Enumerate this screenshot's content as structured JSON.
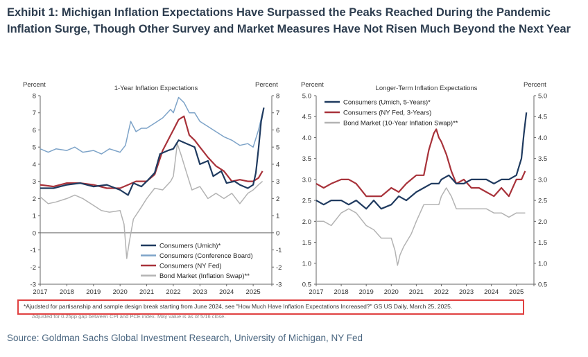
{
  "title": "Exhibit 1: Michigan Inflation Expectations Have Surpassed the Peaks Reached During the Pandemic Inflation Surge, Though Other Survey and Market Measures Have Not Risen Much Beyond the Next Year",
  "footnote_1": "*Ajudsted for partisanship and sample design break starting from June 2024, see \"How Much Have Inflation Expectations Increased?\" GS US Daily, March 25, 2025.",
  "footnote_2": "Adjusted for 0.25pp gap between CPI and PCE index. May value is as of 5/16 close.",
  "source": "Source: Goldman Sachs Global Investment Research, University of Michigan, NY Fed",
  "colors": {
    "umich": "#1f3a5f",
    "conf_board": "#7da3c8",
    "nyfed": "#a8323a",
    "bond": "#b3b3b3",
    "highlight_box": "#e04040"
  },
  "chart_data": [
    {
      "type": "line",
      "title": "1-Year Inflation Expectations",
      "ylabel_left": "Percent",
      "ylabel_right": "Percent",
      "xlim": [
        2017,
        2025.7
      ],
      "ylim": [
        -3,
        8
      ],
      "yticks": [
        -3,
        -2,
        -1,
        0,
        1,
        2,
        3,
        4,
        5,
        6,
        7,
        8
      ],
      "xticks": [
        "2017",
        "2018",
        "2019",
        "2020",
        "2021",
        "2022",
        "2023",
        "2024",
        "2025"
      ],
      "legend_position": "bottom-right",
      "series": [
        {
          "name": "Consumers (Umich)*",
          "color_key": "umich",
          "width": 2.2,
          "x": [
            2017.0,
            2017.5,
            2018.0,
            2018.5,
            2019.0,
            2019.5,
            2020.0,
            2020.3,
            2020.5,
            2020.8,
            2021.0,
            2021.3,
            2021.5,
            2021.8,
            2022.0,
            2022.2,
            2022.5,
            2022.8,
            2023.0,
            2023.3,
            2023.5,
            2023.8,
            2024.0,
            2024.3,
            2024.5,
            2024.8,
            2025.0,
            2025.1,
            2025.2,
            2025.3,
            2025.4
          ],
          "y": [
            2.6,
            2.6,
            2.8,
            2.9,
            2.7,
            2.8,
            2.5,
            2.2,
            2.9,
            2.7,
            3.0,
            3.5,
            4.6,
            4.8,
            4.9,
            5.4,
            5.2,
            5.0,
            4.0,
            4.2,
            3.3,
            3.6,
            2.9,
            3.0,
            2.8,
            2.6,
            2.8,
            3.5,
            4.9,
            6.5,
            7.3
          ]
        },
        {
          "name": "Consumers (Conference Board)",
          "color_key": "conf_board",
          "width": 1.5,
          "x": [
            2017.0,
            2017.3,
            2017.6,
            2018.0,
            2018.3,
            2018.6,
            2019.0,
            2019.3,
            2019.6,
            2020.0,
            2020.2,
            2020.4,
            2020.6,
            2020.8,
            2021.0,
            2021.3,
            2021.6,
            2021.9,
            2022.0,
            2022.2,
            2022.4,
            2022.6,
            2022.8,
            2023.0,
            2023.3,
            2023.6,
            2023.9,
            2024.2,
            2024.5,
            2024.8,
            2025.0,
            2025.2,
            2025.35
          ],
          "y": [
            4.9,
            4.7,
            4.9,
            4.8,
            5.0,
            4.7,
            4.8,
            4.6,
            4.9,
            4.7,
            5.1,
            6.5,
            5.9,
            6.1,
            6.1,
            6.4,
            6.7,
            7.2,
            7.0,
            7.9,
            7.6,
            7.0,
            7.0,
            6.5,
            6.2,
            5.9,
            5.6,
            5.4,
            5.1,
            5.2,
            5.0,
            6.0,
            7.0
          ]
        },
        {
          "name": "Consumers (NY Fed)",
          "color_key": "nyfed",
          "width": 2.2,
          "x": [
            2017.0,
            2017.5,
            2018.0,
            2018.5,
            2019.0,
            2019.5,
            2020.0,
            2020.3,
            2020.6,
            2021.0,
            2021.3,
            2021.6,
            2021.9,
            2022.0,
            2022.2,
            2022.4,
            2022.6,
            2022.8,
            2023.0,
            2023.3,
            2023.6,
            2023.9,
            2024.2,
            2024.5,
            2024.8,
            2025.0,
            2025.2,
            2025.35
          ],
          "y": [
            2.8,
            2.7,
            2.9,
            2.9,
            2.8,
            2.6,
            2.6,
            2.8,
            3.0,
            3.0,
            3.4,
            4.8,
            5.7,
            6.0,
            6.6,
            6.8,
            5.7,
            5.4,
            5.0,
            4.4,
            3.9,
            3.6,
            3.0,
            3.1,
            3.0,
            3.0,
            3.2,
            3.6
          ]
        },
        {
          "name": "Bond Market (Inflation Swap)**",
          "color_key": "bond",
          "width": 1.5,
          "x": [
            2017.0,
            2017.3,
            2017.6,
            2018.0,
            2018.3,
            2018.6,
            2019.0,
            2019.3,
            2019.6,
            2020.0,
            2020.15,
            2020.25,
            2020.35,
            2020.5,
            2020.8,
            2021.0,
            2021.3,
            2021.6,
            2021.9,
            2022.0,
            2022.15,
            2022.3,
            2022.5,
            2022.7,
            2023.0,
            2023.3,
            2023.6,
            2023.9,
            2024.2,
            2024.5,
            2024.8,
            2025.0,
            2025.2,
            2025.35
          ],
          "y": [
            2.1,
            1.7,
            1.8,
            2.0,
            2.2,
            2.0,
            1.6,
            1.3,
            1.2,
            1.3,
            0.5,
            -1.5,
            -0.5,
            0.8,
            1.5,
            2.0,
            2.6,
            2.5,
            3.0,
            3.3,
            5.2,
            4.5,
            3.5,
            2.5,
            2.7,
            2.0,
            2.3,
            2.0,
            2.3,
            1.7,
            2.3,
            2.5,
            2.8,
            3.0
          ]
        }
      ]
    },
    {
      "type": "line",
      "title": "Longer-Term Inflation Expectations",
      "ylabel_left": "Percent",
      "ylabel_right": "Percent",
      "xlim": [
        2017,
        2025.7
      ],
      "ylim": [
        0.5,
        5.0
      ],
      "yticks": [
        0.5,
        1.0,
        1.5,
        2.0,
        2.5,
        3.0,
        3.5,
        4.0,
        4.5,
        5.0
      ],
      "xticks": [
        "2017",
        "2018",
        "2019",
        "2020",
        "2021",
        "2022",
        "2023",
        "2024",
        "2025"
      ],
      "legend_position": "top-left",
      "series": [
        {
          "name": "Consumers (Umich, 5-Years)*",
          "color_key": "umich",
          "width": 2.2,
          "x": [
            2017.0,
            2017.3,
            2017.6,
            2018.0,
            2018.3,
            2018.6,
            2019.0,
            2019.3,
            2019.6,
            2020.0,
            2020.3,
            2020.6,
            2021.0,
            2021.3,
            2021.6,
            2021.9,
            2022.0,
            2022.3,
            2022.6,
            2022.9,
            2023.2,
            2023.5,
            2023.8,
            2024.1,
            2024.4,
            2024.7,
            2025.0,
            2025.1,
            2025.2,
            2025.3,
            2025.4
          ],
          "y": [
            2.5,
            2.4,
            2.5,
            2.5,
            2.4,
            2.5,
            2.3,
            2.5,
            2.3,
            2.4,
            2.6,
            2.5,
            2.7,
            2.8,
            2.9,
            2.9,
            3.0,
            3.1,
            2.9,
            2.9,
            3.0,
            3.0,
            3.0,
            2.9,
            3.0,
            3.0,
            3.1,
            3.3,
            3.5,
            4.1,
            4.6
          ]
        },
        {
          "name": "Consumers (NY Fed, 3-Years)",
          "color_key": "nyfed",
          "width": 2.2,
          "x": [
            2017.0,
            2017.3,
            2017.6,
            2018.0,
            2018.3,
            2018.6,
            2019.0,
            2019.3,
            2019.6,
            2020.0,
            2020.3,
            2020.6,
            2021.0,
            2021.3,
            2021.5,
            2021.7,
            2021.8,
            2021.9,
            2022.0,
            2022.2,
            2022.4,
            2022.6,
            2022.9,
            2023.2,
            2023.5,
            2023.8,
            2024.1,
            2024.4,
            2024.7,
            2025.0,
            2025.2,
            2025.35
          ],
          "y": [
            2.9,
            2.8,
            2.9,
            3.0,
            3.0,
            2.9,
            2.6,
            2.6,
            2.6,
            2.8,
            2.7,
            2.9,
            3.1,
            3.1,
            3.7,
            4.1,
            4.2,
            4.0,
            3.9,
            3.6,
            3.2,
            2.9,
            3.0,
            2.8,
            2.8,
            2.7,
            2.6,
            2.8,
            2.6,
            3.0,
            3.0,
            3.2
          ]
        },
        {
          "name": "Bond Market (10-Year Inflation Swap)**",
          "color_key": "bond",
          "width": 1.5,
          "x": [
            2017.0,
            2017.3,
            2017.6,
            2018.0,
            2018.3,
            2018.6,
            2019.0,
            2019.3,
            2019.6,
            2020.0,
            2020.15,
            2020.25,
            2020.35,
            2020.5,
            2020.8,
            2021.0,
            2021.3,
            2021.6,
            2021.9,
            2022.0,
            2022.2,
            2022.4,
            2022.6,
            2022.9,
            2023.2,
            2023.5,
            2023.8,
            2024.1,
            2024.4,
            2024.7,
            2025.0,
            2025.2,
            2025.35
          ],
          "y": [
            2.0,
            2.0,
            1.9,
            2.2,
            2.3,
            2.2,
            1.9,
            1.8,
            1.6,
            1.6,
            1.3,
            0.95,
            1.2,
            1.4,
            1.7,
            2.0,
            2.4,
            2.4,
            2.4,
            2.6,
            2.8,
            2.6,
            2.3,
            2.3,
            2.3,
            2.3,
            2.3,
            2.2,
            2.2,
            2.1,
            2.2,
            2.2,
            2.2
          ]
        }
      ]
    }
  ]
}
